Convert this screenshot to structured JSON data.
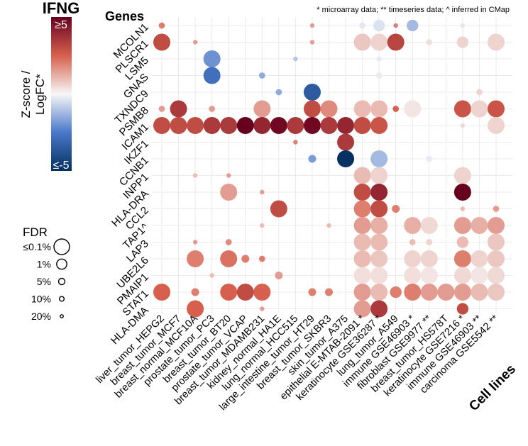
{
  "figure": {
    "title": "IFNG",
    "panel_title": "Genes",
    "note": "* microarray data; ** timeseries data; ^ inferred in CMap",
    "x_axis_title": "Cell lines"
  },
  "legend": {
    "color_title_line1": "Z-score /",
    "color_title_line2": "LogFC*",
    "color_max_label": "≥5",
    "color_min_label": "≤-5",
    "size_title": "FDR",
    "size_entries": [
      {
        "label": "≤0.1%",
        "fdr": 0.1
      },
      {
        "label": "1%",
        "fdr": 1
      },
      {
        "label": "5%",
        "fdr": 5
      },
      {
        "label": "10%",
        "fdr": 10
      },
      {
        "label": "20%",
        "fdr": 20
      }
    ]
  },
  "colors": {
    "neg_strong": "#053061",
    "neg_mid": "#4a78c8",
    "neutral": "#f7f7f7",
    "pos_mid": "#d6604d",
    "pos_strong": "#67001f",
    "grid": "#ebebeb"
  },
  "chart_data": {
    "type": "scatter",
    "genes": [
      "MCOLN1",
      "PLSCR1",
      "LSM5",
      "GNAS",
      "TXNDC9",
      "PSMB8",
      "ICAM1",
      "IKZF1",
      "CCNB1",
      "INPP1",
      "HLA-DRA",
      "CCL2",
      "TAP1^",
      "LAP3",
      "UBE2L6",
      "PMAIP1",
      "STAT1",
      "HLA-DMA"
    ],
    "cell_lines": [
      "liver_tumor_HEPG2",
      "breast_tumor_MCF7",
      "breast_normal_MCF10A",
      "prostate_tumor_PC3",
      "breast_tumor_BT20",
      "prostate_tumor_VCAP",
      "breast_tumor_MDAMB231",
      "kidney_normal_HA1E",
      "lung_normal_HCC515",
      "large_intestine_tumor_HT29",
      "breast_tumor_SKBR3",
      "skin_tumor_A375",
      "epithelial E-MTAB-2091 *",
      "keratinocyte GSE36287 *",
      "lung_tumor_A549",
      "immune GSE46903 *",
      "fibroblast GSE9977 **",
      "breast_tumor_HS578T",
      "keratinocyte GSE7216 *",
      "immune GSE46903 **",
      "carcinoma GSE5542 **"
    ],
    "points": [
      {
        "gene": "MCOLN1",
        "cell_line": "liver_tumor_HEPG2",
        "z": 2.0,
        "fdr": 10
      },
      {
        "gene": "MCOLN1",
        "cell_line": "large_intestine_tumor_HT29",
        "z": 1.5,
        "fdr": 20
      },
      {
        "gene": "MCOLN1",
        "cell_line": "epithelial E-MTAB-2091 *",
        "z": -0.3,
        "fdr": 10
      },
      {
        "gene": "MCOLN1",
        "cell_line": "keratinocyte GSE36287 *",
        "z": -0.4,
        "fdr": 1
      },
      {
        "gene": "MCOLN1",
        "cell_line": "lung_tumor_A549",
        "z": 2.0,
        "fdr": 20
      },
      {
        "gene": "MCOLN1",
        "cell_line": "immune GSE46903 *",
        "z": -1.2,
        "fdr": 1
      },
      {
        "gene": "MCOLN1",
        "cell_line": "keratinocyte GSE7216 *",
        "z": -0.3,
        "fdr": 20
      },
      {
        "gene": "PLSCR1",
        "cell_line": "liver_tumor_HEPG2",
        "z": 3.0,
        "fdr": 0.1
      },
      {
        "gene": "PLSCR1",
        "cell_line": "breast_normal_MCF10A",
        "z": 1.5,
        "fdr": 20
      },
      {
        "gene": "PLSCR1",
        "cell_line": "large_intestine_tumor_HT29",
        "z": 1.5,
        "fdr": 20
      },
      {
        "gene": "PLSCR1",
        "cell_line": "epithelial E-MTAB-2091 *",
        "z": 0.8,
        "fdr": 0.1
      },
      {
        "gene": "PLSCR1",
        "cell_line": "keratinocyte GSE36287 *",
        "z": 0.6,
        "fdr": 0.1
      },
      {
        "gene": "PLSCR1",
        "cell_line": "lung_tumor_A549",
        "z": 3.2,
        "fdr": 0.1
      },
      {
        "gene": "PLSCR1",
        "cell_line": "fibroblast GSE9977 **",
        "z": 0.4,
        "fdr": 10
      },
      {
        "gene": "PLSCR1",
        "cell_line": "keratinocyte GSE7216 *",
        "z": 0.6,
        "fdr": 1
      },
      {
        "gene": "PLSCR1",
        "cell_line": "carcinoma GSE5542 **",
        "z": 0.6,
        "fdr": 0.1
      },
      {
        "gene": "LSM5",
        "cell_line": "prostate_tumor_PC3",
        "z": -2.0,
        "fdr": 0.1
      },
      {
        "gene": "LSM5",
        "cell_line": "lung_normal_HCC515",
        "z": -1.0,
        "fdr": 20
      },
      {
        "gene": "LSM5",
        "cell_line": "keratinocyte GSE36287 *",
        "z": -0.3,
        "fdr": 20
      },
      {
        "gene": "GNAS",
        "cell_line": "prostate_tumor_PC3",
        "z": -2.8,
        "fdr": 0.1
      },
      {
        "gene": "GNAS",
        "cell_line": "breast_tumor_MDAMB231",
        "z": -1.5,
        "fdr": 10
      },
      {
        "gene": "GNAS",
        "cell_line": "keratinocyte GSE36287 *",
        "z": -0.2,
        "fdr": 10
      },
      {
        "gene": "TXNDC9",
        "cell_line": "kidney_normal_HA1E",
        "z": -1.5,
        "fdr": 10
      },
      {
        "gene": "TXNDC9",
        "cell_line": "large_intestine_tumor_HT29",
        "z": -3.5,
        "fdr": 0.1
      },
      {
        "gene": "TXNDC9",
        "cell_line": "immune GSE46903 **",
        "z": 0.6,
        "fdr": 10
      },
      {
        "gene": "PSMB8",
        "cell_line": "liver_tumor_HEPG2",
        "z": 1.5,
        "fdr": 10
      },
      {
        "gene": "PSMB8",
        "cell_line": "breast_tumor_MCF7",
        "z": 3.5,
        "fdr": 0.1
      },
      {
        "gene": "PSMB8",
        "cell_line": "prostate_tumor_PC3",
        "z": 1.5,
        "fdr": 10
      },
      {
        "gene": "PSMB8",
        "cell_line": "breast_tumor_MDAMB231",
        "z": 1.5,
        "fdr": 0.1
      },
      {
        "gene": "PSMB8",
        "cell_line": "large_intestine_tumor_HT29",
        "z": 3.0,
        "fdr": 0.1
      },
      {
        "gene": "PSMB8",
        "cell_line": "breast_tumor_SKBR3",
        "z": 1.8,
        "fdr": 0.1
      },
      {
        "gene": "PSMB8",
        "cell_line": "epithelial E-MTAB-2091 *",
        "z": 1.0,
        "fdr": 0.1
      },
      {
        "gene": "PSMB8",
        "cell_line": "keratinocyte GSE36287 *",
        "z": 1.0,
        "fdr": 0.1
      },
      {
        "gene": "PSMB8",
        "cell_line": "lung_tumor_A549",
        "z": 2.5,
        "fdr": 10
      },
      {
        "gene": "PSMB8",
        "cell_line": "immune GSE46903 *",
        "z": 0.3,
        "fdr": 0.1
      },
      {
        "gene": "PSMB8",
        "cell_line": "keratinocyte GSE7216 *",
        "z": 2.8,
        "fdr": 0.1
      },
      {
        "gene": "PSMB8",
        "cell_line": "immune GSE46903 **",
        "z": 0.6,
        "fdr": 0.1
      },
      {
        "gene": "PSMB8",
        "cell_line": "carcinoma GSE5542 **",
        "z": 2.8,
        "fdr": 0.1
      },
      {
        "gene": "ICAM1",
        "cell_line": "liver_tumor_HEPG2",
        "z": 3.0,
        "fdr": 0.1
      },
      {
        "gene": "ICAM1",
        "cell_line": "breast_tumor_MCF7",
        "z": 3.0,
        "fdr": 0.1
      },
      {
        "gene": "ICAM1",
        "cell_line": "breast_normal_MCF10A",
        "z": 3.0,
        "fdr": 0.1
      },
      {
        "gene": "ICAM1",
        "cell_line": "prostate_tumor_PC3",
        "z": 3.5,
        "fdr": 0.1
      },
      {
        "gene": "ICAM1",
        "cell_line": "breast_tumor_BT20",
        "z": 3.5,
        "fdr": 0.1
      },
      {
        "gene": "ICAM1",
        "cell_line": "prostate_tumor_VCAP",
        "z": 5.0,
        "fdr": 0.1
      },
      {
        "gene": "ICAM1",
        "cell_line": "breast_tumor_MDAMB231",
        "z": 4.0,
        "fdr": 0.1
      },
      {
        "gene": "ICAM1",
        "cell_line": "kidney_normal_HA1E",
        "z": 4.8,
        "fdr": 0.1
      },
      {
        "gene": "ICAM1",
        "cell_line": "lung_normal_HCC515",
        "z": 3.5,
        "fdr": 0.1
      },
      {
        "gene": "ICAM1",
        "cell_line": "large_intestine_tumor_HT29",
        "z": 4.8,
        "fdr": 0.1
      },
      {
        "gene": "ICAM1",
        "cell_line": "breast_tumor_SKBR3",
        "z": 3.5,
        "fdr": 0.1
      },
      {
        "gene": "ICAM1",
        "cell_line": "skin_tumor_A375",
        "z": 4.0,
        "fdr": 0.1
      },
      {
        "gene": "ICAM1",
        "cell_line": "epithelial E-MTAB-2091 *",
        "z": 3.0,
        "fdr": 0.1
      },
      {
        "gene": "ICAM1",
        "cell_line": "keratinocyte GSE36287 *",
        "z": 2.8,
        "fdr": 0.1
      },
      {
        "gene": "ICAM1",
        "cell_line": "keratinocyte GSE7216 *",
        "z": 0.5,
        "fdr": 20
      },
      {
        "gene": "ICAM1",
        "cell_line": "carcinoma GSE5542 **",
        "z": 0.6,
        "fdr": 0.1
      },
      {
        "gene": "IKZF1",
        "cell_line": "lung_normal_HCC515",
        "z": 2.0,
        "fdr": 20
      },
      {
        "gene": "IKZF1",
        "cell_line": "skin_tumor_A375",
        "z": 3.5,
        "fdr": 0.1
      },
      {
        "gene": "CCNB1",
        "cell_line": "large_intestine_tumor_HT29",
        "z": -1.8,
        "fdr": 5
      },
      {
        "gene": "CCNB1",
        "cell_line": "skin_tumor_A375",
        "z": -5.0,
        "fdr": 0.1
      },
      {
        "gene": "CCNB1",
        "cell_line": "keratinocyte GSE36287 *",
        "z": -1.2,
        "fdr": 0.1
      },
      {
        "gene": "CCNB1",
        "cell_line": "fibroblast GSE9977 **",
        "z": -0.2,
        "fdr": 10
      },
      {
        "gene": "INPP1",
        "cell_line": "breast_normal_MCF10A",
        "z": 1.0,
        "fdr": 20
      },
      {
        "gene": "INPP1",
        "cell_line": "breast_tumor_BT20",
        "z": 1.5,
        "fdr": 20
      },
      {
        "gene": "INPP1",
        "cell_line": "epithelial E-MTAB-2091 *",
        "z": 1.0,
        "fdr": 0.1
      },
      {
        "gene": "INPP1",
        "cell_line": "keratinocyte GSE36287 *",
        "z": 0.6,
        "fdr": 0.1
      },
      {
        "gene": "INPP1",
        "cell_line": "keratinocyte GSE7216 *",
        "z": 0.6,
        "fdr": 0.1
      },
      {
        "gene": "HLA-DRA",
        "cell_line": "breast_tumor_BT20",
        "z": 1.5,
        "fdr": 0.1
      },
      {
        "gene": "HLA-DRA",
        "cell_line": "breast_tumor_MDAMB231",
        "z": 1.5,
        "fdr": 20
      },
      {
        "gene": "HLA-DRA",
        "cell_line": "epithelial E-MTAB-2091 *",
        "z": 3.0,
        "fdr": 0.1
      },
      {
        "gene": "HLA-DRA",
        "cell_line": "keratinocyte GSE36287 *",
        "z": 4.0,
        "fdr": 0.1
      },
      {
        "gene": "HLA-DRA",
        "cell_line": "keratinocyte GSE7216 *",
        "z": 5.0,
        "fdr": 0.1
      },
      {
        "gene": "CCL2",
        "cell_line": "kidney_normal_HA1E",
        "z": 3.0,
        "fdr": 0.1
      },
      {
        "gene": "CCL2",
        "cell_line": "epithelial E-MTAB-2091 *",
        "z": 2.0,
        "fdr": 0.1
      },
      {
        "gene": "CCL2",
        "cell_line": "keratinocyte GSE36287 *",
        "z": 3.0,
        "fdr": 0.1
      },
      {
        "gene": "CCL2",
        "cell_line": "lung_tumor_A549",
        "z": 2.0,
        "fdr": 5
      },
      {
        "gene": "CCL2",
        "cell_line": "keratinocyte GSE7216 *",
        "z": 1.0,
        "fdr": 20
      },
      {
        "gene": "CCL2",
        "cell_line": "carcinoma GSE5542 **",
        "z": 1.5,
        "fdr": 10
      },
      {
        "gene": "TAP1^",
        "cell_line": "breast_tumor_MDAMB231",
        "z": 1.0,
        "fdr": 20
      },
      {
        "gene": "TAP1^",
        "cell_line": "breast_tumor_SKBR3",
        "z": 1.0,
        "fdr": 20
      },
      {
        "gene": "TAP1^",
        "cell_line": "epithelial E-MTAB-2091 *",
        "z": 1.5,
        "fdr": 0.1
      },
      {
        "gene": "TAP1^",
        "cell_line": "keratinocyte GSE36287 *",
        "z": 1.2,
        "fdr": 0.1
      },
      {
        "gene": "TAP1^",
        "cell_line": "immune GSE46903 *",
        "z": 1.2,
        "fdr": 0.1
      },
      {
        "gene": "TAP1^",
        "cell_line": "fibroblast GSE9977 **",
        "z": 0.5,
        "fdr": 0.1
      },
      {
        "gene": "TAP1^",
        "cell_line": "keratinocyte GSE7216 *",
        "z": 1.5,
        "fdr": 0.1
      },
      {
        "gene": "TAP1^",
        "cell_line": "immune GSE46903 **",
        "z": 1.2,
        "fdr": 0.1
      },
      {
        "gene": "TAP1^",
        "cell_line": "carcinoma GSE5542 **",
        "z": 1.5,
        "fdr": 0.1
      },
      {
        "gene": "LAP3",
        "cell_line": "breast_normal_MCF10A",
        "z": 1.5,
        "fdr": 20
      },
      {
        "gene": "LAP3",
        "cell_line": "breast_tumor_BT20",
        "z": 1.8,
        "fdr": 10
      },
      {
        "gene": "LAP3",
        "cell_line": "epithelial E-MTAB-2091 *",
        "z": 1.0,
        "fdr": 0.1
      },
      {
        "gene": "LAP3",
        "cell_line": "keratinocyte GSE36287 *",
        "z": 1.0,
        "fdr": 0.1
      },
      {
        "gene": "LAP3",
        "cell_line": "immune GSE46903 *",
        "z": 1.0,
        "fdr": 10
      },
      {
        "gene": "LAP3",
        "cell_line": "fibroblast GSE9977 **",
        "z": 0.6,
        "fdr": 10
      },
      {
        "gene": "LAP3",
        "cell_line": "keratinocyte GSE7216 *",
        "z": 1.0,
        "fdr": 1
      },
      {
        "gene": "LAP3",
        "cell_line": "carcinoma GSE5542 **",
        "z": 0.8,
        "fdr": 0.1
      },
      {
        "gene": "UBE2L6",
        "cell_line": "breast_normal_MCF10A",
        "z": 2.0,
        "fdr": 0.1
      },
      {
        "gene": "UBE2L6",
        "cell_line": "breast_tumor_BT20",
        "z": 2.2,
        "fdr": 0.1
      },
      {
        "gene": "UBE2L6",
        "cell_line": "prostate_tumor_VCAP",
        "z": 2.0,
        "fdr": 5
      },
      {
        "gene": "UBE2L6",
        "cell_line": "breast_tumor_MDAMB231",
        "z": 2.0,
        "fdr": 10
      },
      {
        "gene": "UBE2L6",
        "cell_line": "epithelial E-MTAB-2091 *",
        "z": 1.0,
        "fdr": 0.1
      },
      {
        "gene": "UBE2L6",
        "cell_line": "keratinocyte GSE36287 *",
        "z": 0.8,
        "fdr": 0.1
      },
      {
        "gene": "UBE2L6",
        "cell_line": "immune GSE46903 *",
        "z": 0.6,
        "fdr": 0.1
      },
      {
        "gene": "UBE2L6",
        "cell_line": "fibroblast GSE9977 **",
        "z": 0.6,
        "fdr": 0.1
      },
      {
        "gene": "UBE2L6",
        "cell_line": "keratinocyte GSE7216 *",
        "z": 2.0,
        "fdr": 0.1
      },
      {
        "gene": "UBE2L6",
        "cell_line": "immune GSE46903 **",
        "z": 0.6,
        "fdr": 0.1
      },
      {
        "gene": "UBE2L6",
        "cell_line": "carcinoma GSE5542 **",
        "z": 0.8,
        "fdr": 0.1
      },
      {
        "gene": "PMAIP1",
        "cell_line": "prostate_tumor_PC3",
        "z": 1.0,
        "fdr": 20
      },
      {
        "gene": "PMAIP1",
        "cell_line": "kidney_normal_HA1E",
        "z": 1.5,
        "fdr": 5
      },
      {
        "gene": "PMAIP1",
        "cell_line": "epithelial E-MTAB-2091 *",
        "z": 0.4,
        "fdr": 0.1
      },
      {
        "gene": "PMAIP1",
        "cell_line": "keratinocyte GSE36287 *",
        "z": 0.4,
        "fdr": 0.1
      },
      {
        "gene": "PMAIP1",
        "cell_line": "immune GSE46903 *",
        "z": 0.4,
        "fdr": 0.1
      },
      {
        "gene": "PMAIP1",
        "cell_line": "fibroblast GSE9977 **",
        "z": 0.3,
        "fdr": 0.1
      },
      {
        "gene": "PMAIP1",
        "cell_line": "keratinocyte GSE7216 *",
        "z": 0.5,
        "fdr": 0.1
      },
      {
        "gene": "PMAIP1",
        "cell_line": "immune GSE46903 **",
        "z": 0.3,
        "fdr": 0.1
      },
      {
        "gene": "PMAIP1",
        "cell_line": "carcinoma GSE5542 **",
        "z": 0.5,
        "fdr": 0.1
      },
      {
        "gene": "STAT1",
        "cell_line": "liver_tumor_HEPG2",
        "z": 2.5,
        "fdr": 0.1
      },
      {
        "gene": "STAT1",
        "cell_line": "breast_normal_MCF10A",
        "z": 2.0,
        "fdr": 5
      },
      {
        "gene": "STAT1",
        "cell_line": "breast_tumor_BT20",
        "z": 2.5,
        "fdr": 0.1
      },
      {
        "gene": "STAT1",
        "cell_line": "prostate_tumor_VCAP",
        "z": 3.0,
        "fdr": 0.1
      },
      {
        "gene": "STAT1",
        "cell_line": "breast_tumor_MDAMB231",
        "z": 2.5,
        "fdr": 0.1
      },
      {
        "gene": "STAT1",
        "cell_line": "large_intestine_tumor_HT29",
        "z": 2.0,
        "fdr": 5
      },
      {
        "gene": "STAT1",
        "cell_line": "breast_tumor_SKBR3",
        "z": 2.0,
        "fdr": 5
      },
      {
        "gene": "STAT1",
        "cell_line": "epithelial E-MTAB-2091 *",
        "z": 1.5,
        "fdr": 0.1
      },
      {
        "gene": "STAT1",
        "cell_line": "keratinocyte GSE36287 *",
        "z": 1.0,
        "fdr": 0.1
      },
      {
        "gene": "STAT1",
        "cell_line": "lung_tumor_A549",
        "z": 2.0,
        "fdr": 1
      },
      {
        "gene": "STAT1",
        "cell_line": "immune GSE46903 *",
        "z": 2.0,
        "fdr": 0.1
      },
      {
        "gene": "STAT1",
        "cell_line": "fibroblast GSE9977 **",
        "z": 1.5,
        "fdr": 0.1
      },
      {
        "gene": "STAT1",
        "cell_line": "breast_tumor_HS578T",
        "z": 1.5,
        "fdr": 0.1
      },
      {
        "gene": "STAT1",
        "cell_line": "keratinocyte GSE7216 *",
        "z": 1.5,
        "fdr": 0.1
      },
      {
        "gene": "STAT1",
        "cell_line": "immune GSE46903 **",
        "z": 1.0,
        "fdr": 0.1
      },
      {
        "gene": "STAT1",
        "cell_line": "carcinoma GSE5542 **",
        "z": 0.8,
        "fdr": 0.1
      },
      {
        "gene": "HLA-DMA",
        "cell_line": "breast_normal_MCF10A",
        "z": 2.5,
        "fdr": 0.1
      },
      {
        "gene": "HLA-DMA",
        "cell_line": "breast_tumor_MDAMB231",
        "z": 1.5,
        "fdr": 20
      },
      {
        "gene": "HLA-DMA",
        "cell_line": "epithelial E-MTAB-2091 *",
        "z": 1.5,
        "fdr": 0.1
      },
      {
        "gene": "HLA-DMA",
        "cell_line": "keratinocyte GSE36287 *",
        "z": 3.5,
        "fdr": 0.1
      },
      {
        "gene": "HLA-DMA",
        "cell_line": "keratinocyte GSE7216 *",
        "z": 3.0,
        "fdr": 1
      }
    ]
  }
}
